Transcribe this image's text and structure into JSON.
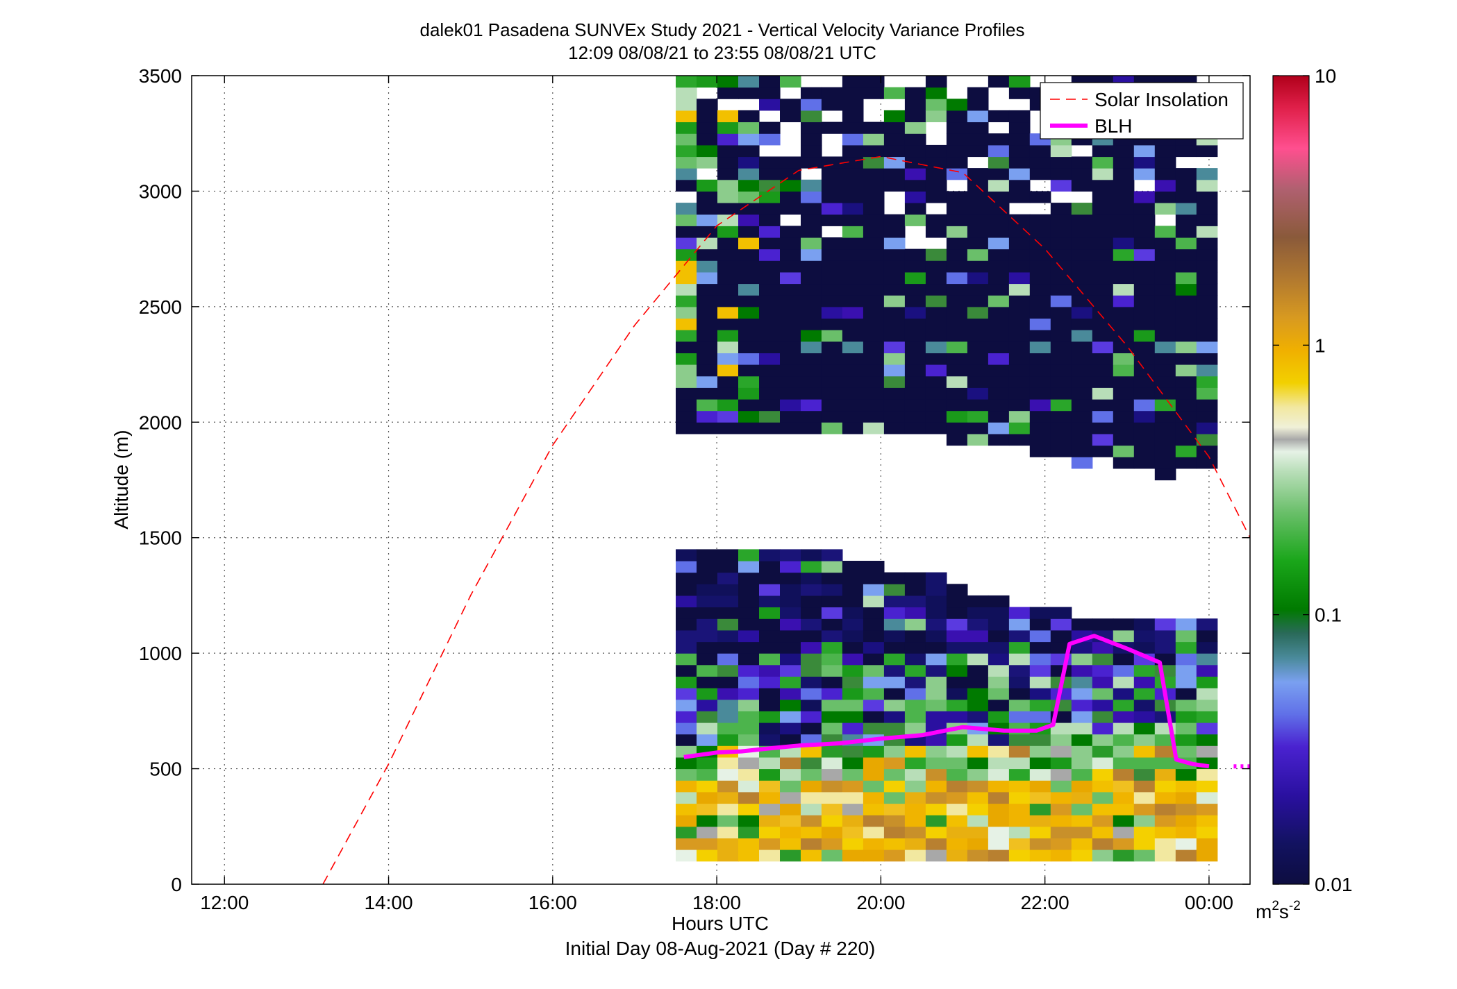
{
  "chart_data": {
    "type": "heatmap",
    "title": "dalek01 Pasadena SUNVEx Study 2021 - Vertical Velocity Variance Profiles",
    "subtitle": "12:09 08/08/21 to 23:55 08/08/21  UTC",
    "xlabel": "Hours UTC",
    "xlabel2": "Initial Day 08-Aug-2021 (Day # 220)",
    "ylabel": "Altitude (m)",
    "x_unit": "hours UTC (since 00:00 08-Aug-2021)",
    "xlim": [
      11.6,
      24.5
    ],
    "ylim": [
      0,
      3500
    ],
    "x_ticks": [
      {
        "value": 12,
        "label": "12:00"
      },
      {
        "value": 14,
        "label": "14:00"
      },
      {
        "value": 16,
        "label": "16:00"
      },
      {
        "value": 18,
        "label": "18:00"
      },
      {
        "value": 20,
        "label": "20:00"
      },
      {
        "value": 22,
        "label": "22:00"
      },
      {
        "value": 24,
        "label": "00:00"
      }
    ],
    "y_ticks": [
      0,
      500,
      1000,
      1500,
      2000,
      2500,
      3000,
      3500
    ],
    "grid": true,
    "legend_position": "top-right",
    "colorbar": {
      "scale": "log",
      "min": 0.01,
      "max": 10,
      "tick_labels": [
        "10",
        "1",
        "0.1",
        "0.01"
      ],
      "tick_values": [
        10,
        1,
        0.1,
        0.01
      ],
      "unit_base": "m",
      "unit_sup1": "2",
      "unit_mid": "s",
      "unit_sup2": "-2"
    },
    "heatmap": {
      "x_start": 17.5,
      "x_end": 24.1,
      "column_count": 26,
      "bin_height_m": 50,
      "lower_layer": {
        "top_altitude_by_column_m": [
          1450,
          1450,
          1450,
          1450,
          1450,
          1450,
          1450,
          1450,
          1400,
          1400,
          1350,
          1350,
          1350,
          1300,
          1250,
          1250,
          1200,
          1200,
          1200,
          1150,
          1150,
          1150,
          1150,
          1150,
          1150,
          1150
        ],
        "bottom_altitude_m": 100,
        "value_band_0_500m": "0.3 - 1 m2 s-2",
        "value_band_500_1000m": "0.03 - 0.3 m2 s-2",
        "value_band_above_1000m": "0.01 - 0.03 m2 s-2"
      },
      "upper_layer": {
        "top_altitude_m": 3500,
        "bottom_altitude_by_column_m": [
          1950,
          1950,
          1950,
          1950,
          1950,
          1950,
          1950,
          1950,
          1950,
          1950,
          1950,
          1950,
          1950,
          1900,
          1900,
          1900,
          1900,
          1850,
          1850,
          1800,
          1850,
          1800,
          1800,
          1750,
          1800,
          1800
        ],
        "typical_value": "0.01 m2 s-2"
      }
    },
    "series": [
      {
        "name": "Solar Insolation",
        "style": "dashed",
        "color": "#ff0000",
        "note": "curve drawn in altitude-axis units",
        "x": [
          13.2,
          14.0,
          15.0,
          16.0,
          17.0,
          18.0,
          19.0,
          20.0,
          21.0,
          22.0,
          23.0,
          24.0,
          24.5
        ],
        "y": [
          0,
          520,
          1250,
          1900,
          2420,
          2850,
          3090,
          3150,
          3080,
          2750,
          2330,
          1850,
          1500
        ]
      },
      {
        "name": "BLH",
        "style": "solid",
        "color": "#ff00ff",
        "x": [
          17.6,
          18.0,
          18.3,
          18.7,
          19.0,
          19.5,
          20.0,
          20.5,
          21.0,
          21.5,
          21.9,
          22.1,
          22.3,
          22.6,
          23.0,
          23.4,
          23.6,
          23.8,
          24.0
        ],
        "y": [
          550,
          570,
          575,
          590,
          600,
          610,
          630,
          645,
          680,
          665,
          665,
          690,
          1040,
          1075,
          1020,
          960,
          540,
          520,
          510
        ]
      }
    ],
    "blh_continuation": {
      "x": [
        24.3,
        24.5
      ],
      "y": [
        510,
        510
      ]
    }
  }
}
